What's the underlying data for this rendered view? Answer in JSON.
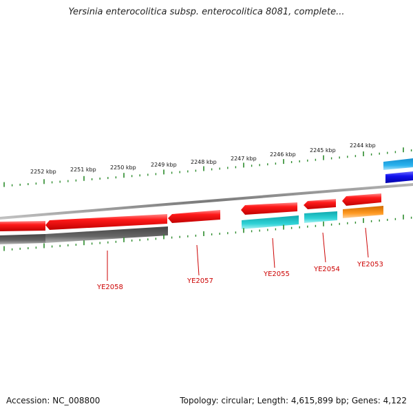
{
  "title": "Yersinia enterocolitica subsp. enterocolitica 8081, complete...",
  "footer": {
    "accession": "Accession: NC_008800",
    "stats": "Topology: circular; Length: 4,615,899 bp; Genes: 4,122"
  },
  "colors": {
    "tick": "#2a8a2a",
    "backbone": "#8a8a8a",
    "gene_red": "#ee1111",
    "gene_cyan": "#22c4c8",
    "gene_orange": "#ff8c1a",
    "gene_grey": "#5e5e5e",
    "gene_blue": "#1a1aee",
    "gene_lightblue": "#22a6e8",
    "label": "#cc0000"
  },
  "scale_labels": [
    {
      "text": "2252 kbp",
      "kbp": 2252
    },
    {
      "text": "2251 kbp",
      "kbp": 2251
    },
    {
      "text": "2250 kbp",
      "kbp": 2250
    },
    {
      "text": "2249 kbp",
      "kbp": 2249
    },
    {
      "text": "2248 kbp",
      "kbp": 2248
    },
    {
      "text": "2247 kbp",
      "kbp": 2247
    },
    {
      "text": "2246 kbp",
      "kbp": 2246
    },
    {
      "text": "2245 kbp",
      "kbp": 2245
    },
    {
      "text": "2244 kbp",
      "kbp": 2244
    }
  ],
  "gene_labels": [
    "YE2058",
    "YE2057",
    "YE2055",
    "YE2054",
    "YE2053"
  ]
}
